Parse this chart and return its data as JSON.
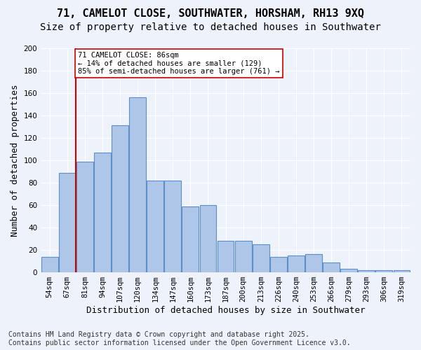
{
  "title_line1": "71, CAMELOT CLOSE, SOUTHWATER, HORSHAM, RH13 9XQ",
  "title_line2": "Size of property relative to detached houses in Southwater",
  "xlabel": "Distribution of detached houses by size in Southwater",
  "ylabel": "Number of detached properties",
  "categories": [
    "54sqm",
    "67sqm",
    "81sqm",
    "94sqm",
    "107sqm",
    "120sqm",
    "134sqm",
    "147sqm",
    "160sqm",
    "173sqm",
    "187sqm",
    "200sqm",
    "213sqm",
    "226sqm",
    "240sqm",
    "253sqm",
    "266sqm",
    "279sqm",
    "293sqm",
    "306sqm",
    "319sqm"
  ],
  "values": [
    14,
    89,
    99,
    107,
    131,
    156,
    82,
    82,
    59,
    60,
    28,
    28,
    25,
    14,
    15,
    16,
    9,
    3,
    2,
    2,
    2
  ],
  "bar_color": "#aec6e8",
  "bar_edge_color": "#5b8fc9",
  "annotation_line1": "71 CAMELOT CLOSE: 86sqm",
  "annotation_line2": "← 14% of detached houses are smaller (129)",
  "annotation_line3": "85% of semi-detached houses are larger (761) →",
  "annotation_box_color": "#ffffff",
  "annotation_box_edge_color": "#cc0000",
  "vline_x": 1.5,
  "vline_color": "#cc0000",
  "ylim": [
    0,
    200
  ],
  "yticks": [
    0,
    20,
    40,
    60,
    80,
    100,
    120,
    140,
    160,
    180,
    200
  ],
  "background_color": "#eef2fb",
  "footer_line1": "Contains HM Land Registry data © Crown copyright and database right 2025.",
  "footer_line2": "Contains public sector information licensed under the Open Government Licence v3.0.",
  "title_fontsize": 11,
  "subtitle_fontsize": 10,
  "axis_label_fontsize": 9,
  "tick_fontsize": 7.5,
  "annotation_fontsize": 7.5,
  "footer_fontsize": 7
}
